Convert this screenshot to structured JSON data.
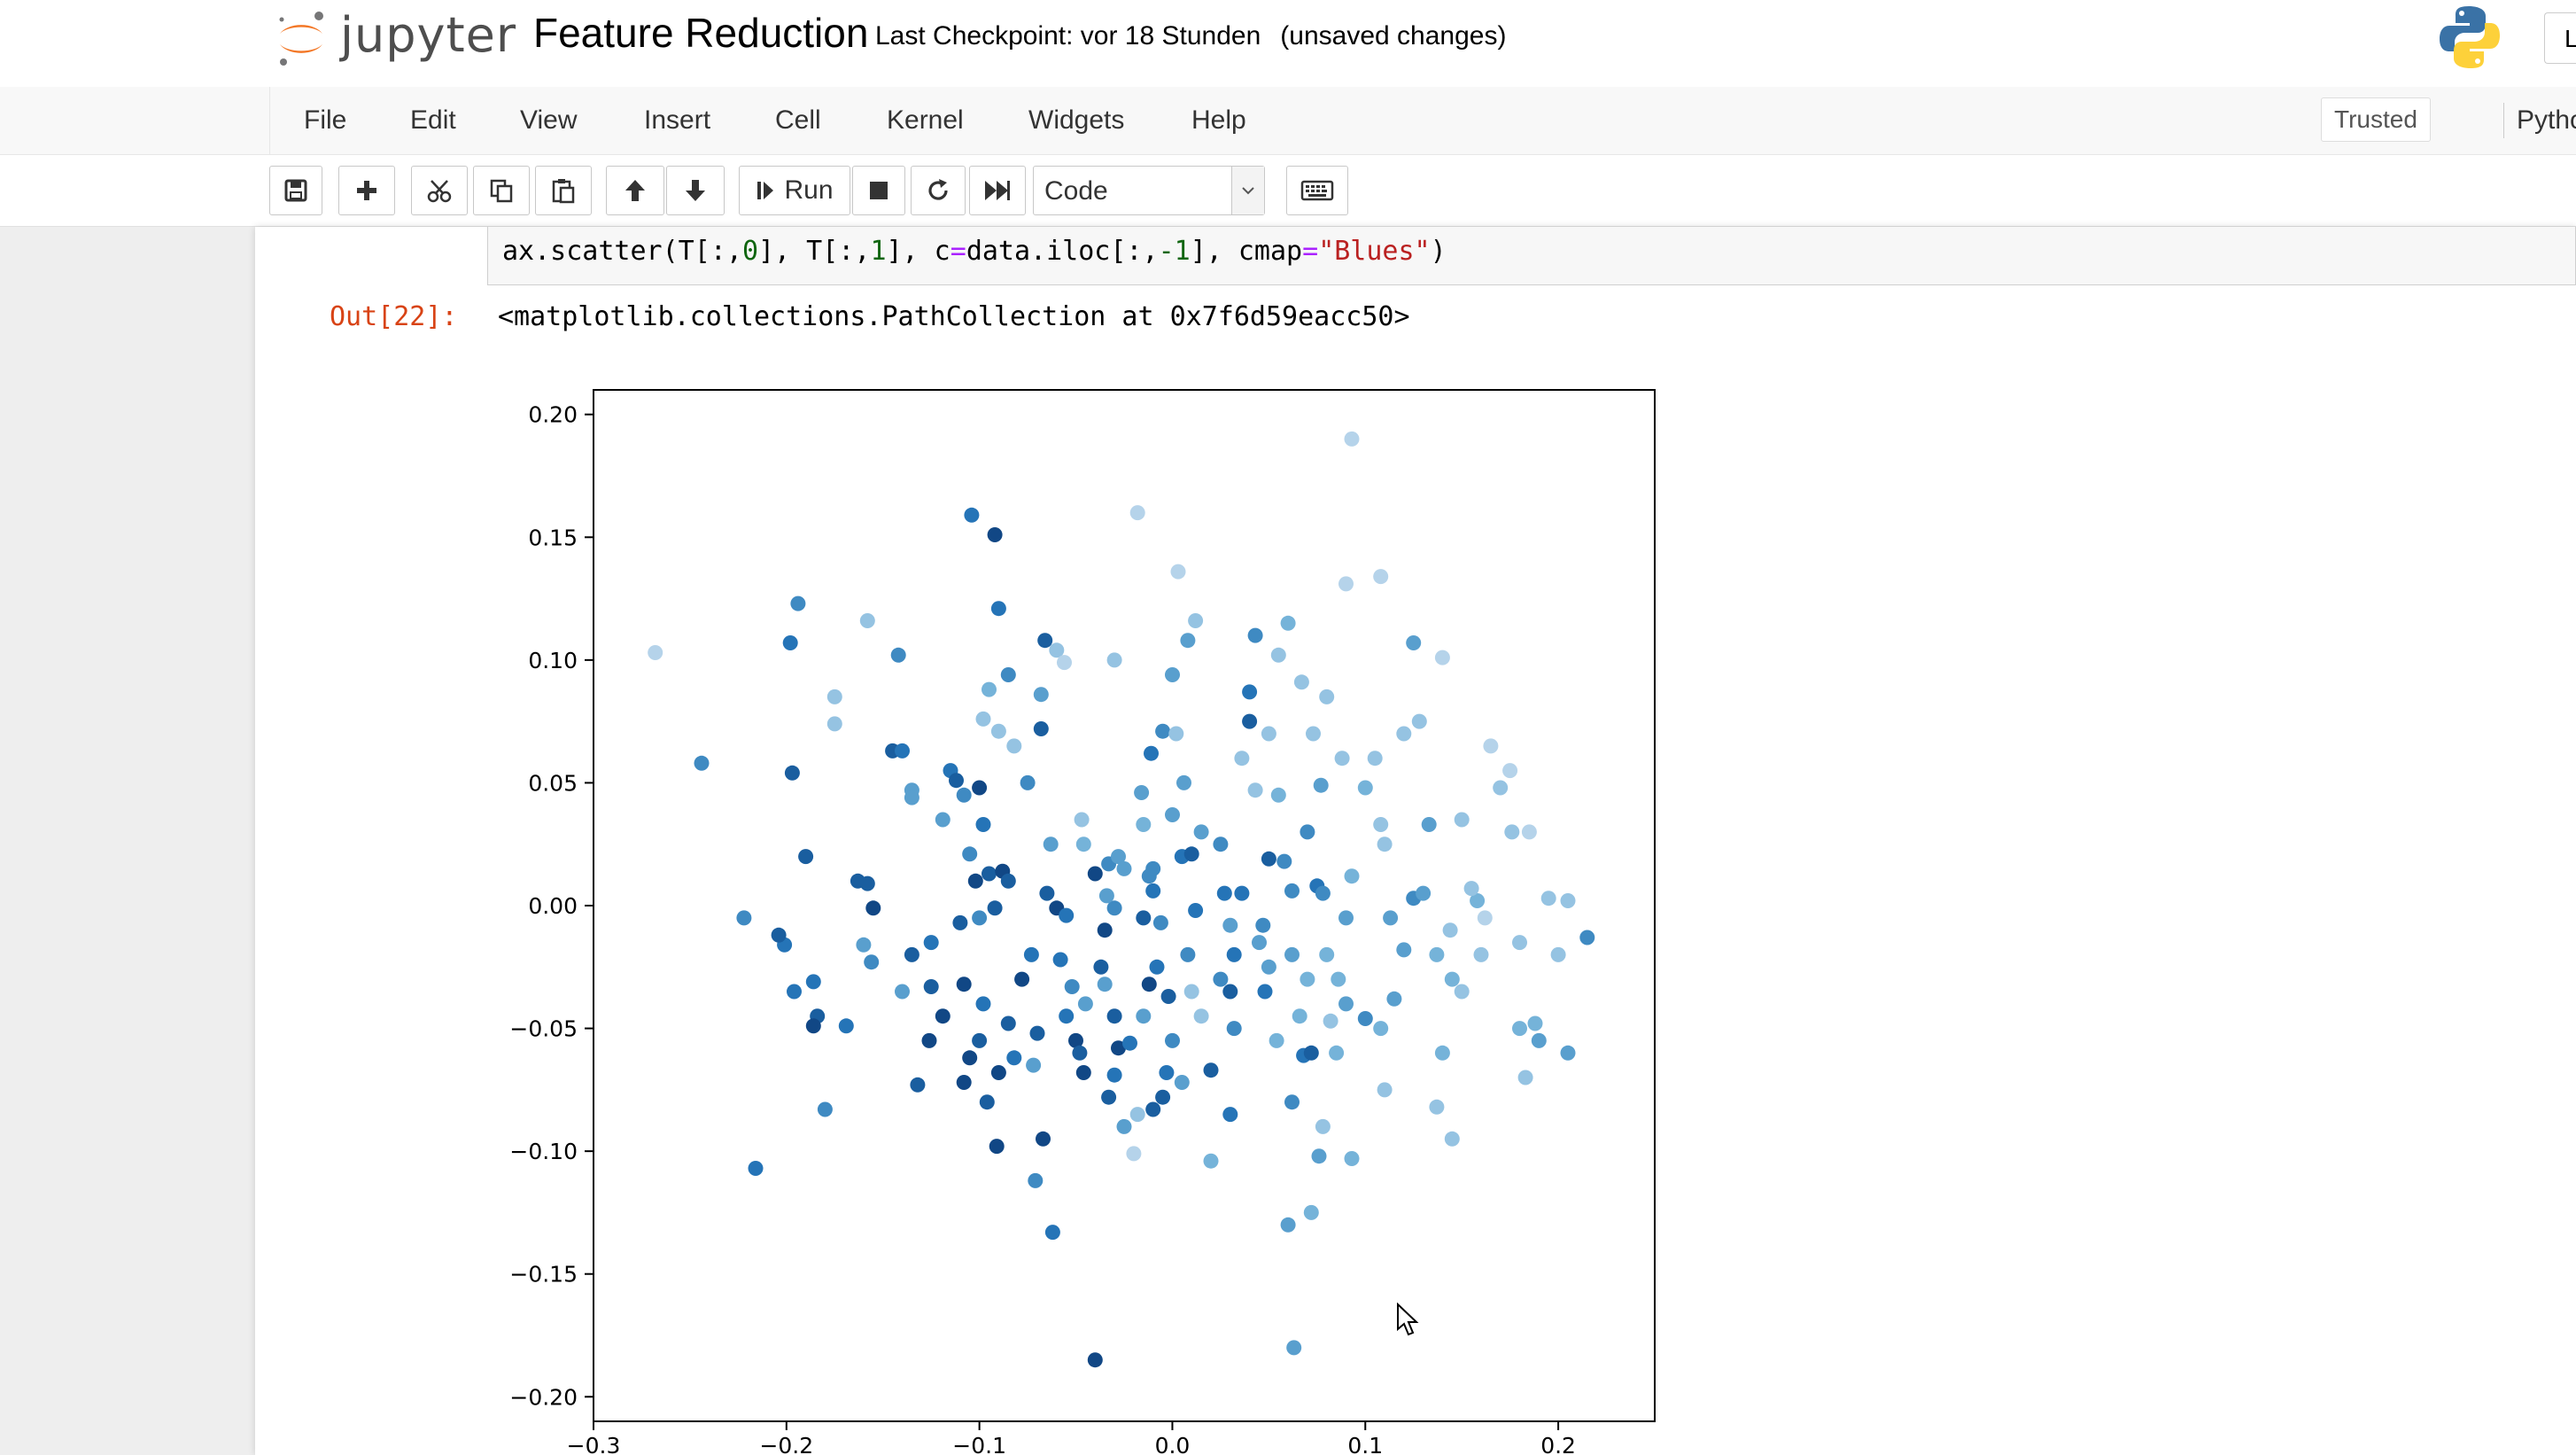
{
  "header": {
    "logo_text": "jupyter",
    "notebook_name": "Feature Reduction",
    "checkpoint": "Last Checkpoint: vor 18 Stunden",
    "save_status": "(unsaved changes)",
    "right_box_text": "L"
  },
  "menu": {
    "items": [
      "File",
      "Edit",
      "View",
      "Insert",
      "Cell",
      "Kernel",
      "Widgets",
      "Help"
    ],
    "trusted": "Trusted",
    "kernel": "Pytho"
  },
  "toolbar": {
    "run_label": "Run",
    "cell_type": "Code",
    "icons": [
      "save-icon",
      "plus-icon",
      "scissors-icon",
      "copy-icon",
      "paste-icon",
      "arrow-up-icon",
      "arrow-down-icon",
      "run-icon",
      "stop-icon",
      "restart-icon",
      "fast-forward-icon",
      "chevron-down-icon",
      "keyboard-icon"
    ]
  },
  "cell": {
    "code_parts": {
      "p1": "ax.scatter(T[:,",
      "n1": "0",
      "p2": "], T[:,",
      "n2": "1",
      "p3": "], c",
      "eq": "=",
      "p4": "data.iloc[:,",
      "m": "-1",
      "p5": "], cmap",
      "eq2": "=",
      "s": "\"Blues\"",
      "p6": ")"
    },
    "out_prompt": "Out[22]:",
    "output_text": "<matplotlib.collections.PathCollection at 0x7f6d59eacc50>"
  },
  "chart_data": {
    "type": "scatter",
    "colormap": "Blues",
    "xlim": [
      -0.3,
      0.25
    ],
    "ylim": [
      -0.21,
      0.21
    ],
    "xticks": [
      -0.3,
      -0.2,
      -0.1,
      0.0,
      0.1,
      0.2
    ],
    "xtick_labels": [
      "−0.3",
      "−0.2",
      "−0.1",
      "0.0",
      "0.1",
      "0.2"
    ],
    "yticks": [
      0.2,
      0.15,
      0.1,
      0.05,
      0.0,
      -0.05,
      -0.1,
      -0.15,
      -0.2
    ],
    "ytick_labels": [
      "0.20",
      "0.15",
      "0.10",
      "0.05",
      "0.00",
      "−0.05",
      "−0.10",
      "−0.15",
      "−0.20"
    ],
    "grid": false,
    "points": [
      [
        -0.268,
        0.103,
        0.2
      ],
      [
        -0.244,
        0.058,
        0.6
      ],
      [
        -0.222,
        -0.005,
        0.6
      ],
      [
        -0.216,
        -0.107,
        0.7
      ],
      [
        -0.194,
        0.123,
        0.6
      ],
      [
        -0.198,
        0.107,
        0.7
      ],
      [
        -0.197,
        0.054,
        0.8
      ],
      [
        -0.19,
        0.02,
        0.8
      ],
      [
        -0.186,
        -0.031,
        0.7
      ],
      [
        -0.184,
        -0.045,
        0.8
      ],
      [
        -0.186,
        -0.049,
        0.9
      ],
      [
        -0.18,
        -0.083,
        0.6
      ],
      [
        -0.175,
        0.085,
        0.3
      ],
      [
        -0.175,
        0.074,
        0.3
      ],
      [
        -0.196,
        -0.035,
        0.7
      ],
      [
        -0.201,
        -0.016,
        0.7
      ],
      [
        -0.204,
        -0.012,
        0.8
      ],
      [
        -0.169,
        -0.049,
        0.7
      ],
      [
        -0.163,
        0.01,
        0.8
      ],
      [
        -0.158,
        0.009,
        0.8
      ],
      [
        -0.155,
        -0.001,
        0.9
      ],
      [
        -0.16,
        -0.016,
        0.5
      ],
      [
        -0.156,
        -0.023,
        0.6
      ],
      [
        -0.145,
        0.063,
        0.8
      ],
      [
        -0.14,
        0.063,
        0.7
      ],
      [
        -0.142,
        0.102,
        0.6
      ],
      [
        -0.158,
        0.116,
        0.3
      ],
      [
        -0.135,
        0.047,
        0.5
      ],
      [
        -0.135,
        0.044,
        0.5
      ],
      [
        -0.14,
        -0.035,
        0.5
      ],
      [
        -0.132,
        -0.073,
        0.8
      ],
      [
        -0.135,
        -0.02,
        0.8
      ],
      [
        -0.125,
        -0.033,
        0.8
      ],
      [
        -0.119,
        -0.045,
        0.9
      ],
      [
        -0.126,
        -0.055,
        0.9
      ],
      [
        -0.125,
        -0.015,
        0.7
      ],
      [
        -0.119,
        0.035,
        0.5
      ],
      [
        -0.115,
        0.055,
        0.7
      ],
      [
        -0.112,
        0.051,
        0.8
      ],
      [
        -0.108,
        0.045,
        0.6
      ],
      [
        -0.104,
        0.159,
        0.7
      ],
      [
        -0.092,
        0.151,
        0.9
      ],
      [
        -0.09,
        0.121,
        0.7
      ],
      [
        -0.095,
        0.088,
        0.4
      ],
      [
        -0.085,
        0.094,
        0.6
      ],
      [
        -0.09,
        0.071,
        0.3
      ],
      [
        -0.098,
        0.076,
        0.3
      ],
      [
        -0.1,
        0.048,
        0.9
      ],
      [
        -0.098,
        0.033,
        0.7
      ],
      [
        -0.105,
        0.021,
        0.6
      ],
      [
        -0.102,
        0.01,
        0.9
      ],
      [
        -0.095,
        0.013,
        0.8
      ],
      [
        -0.088,
        0.014,
        0.9
      ],
      [
        -0.085,
        0.01,
        0.8
      ],
      [
        -0.092,
        -0.001,
        0.8
      ],
      [
        -0.1,
        -0.005,
        0.6
      ],
      [
        -0.11,
        -0.007,
        0.8
      ],
      [
        -0.108,
        -0.032,
        0.9
      ],
      [
        -0.098,
        -0.04,
        0.7
      ],
      [
        -0.1,
        -0.055,
        0.8
      ],
      [
        -0.105,
        -0.062,
        0.9
      ],
      [
        -0.108,
        -0.072,
        0.9
      ],
      [
        -0.096,
        -0.08,
        0.8
      ],
      [
        -0.091,
        -0.098,
        0.9
      ],
      [
        -0.09,
        -0.068,
        0.9
      ],
      [
        -0.082,
        -0.062,
        0.7
      ],
      [
        -0.085,
        -0.048,
        0.8
      ],
      [
        -0.078,
        -0.03,
        0.9
      ],
      [
        -0.073,
        -0.02,
        0.7
      ],
      [
        -0.07,
        -0.052,
        0.8
      ],
      [
        -0.072,
        -0.065,
        0.5
      ],
      [
        -0.067,
        -0.095,
        0.9
      ],
      [
        -0.071,
        -0.112,
        0.6
      ],
      [
        -0.075,
        0.05,
        0.6
      ],
      [
        -0.082,
        0.065,
        0.3
      ],
      [
        -0.068,
        0.072,
        0.8
      ],
      [
        -0.068,
        0.086,
        0.5
      ],
      [
        -0.066,
        0.108,
        0.8
      ],
      [
        -0.06,
        0.104,
        0.3
      ],
      [
        -0.056,
        0.099,
        0.2
      ],
      [
        -0.063,
        0.025,
        0.5
      ],
      [
        -0.065,
        0.005,
        0.8
      ],
      [
        -0.06,
        -0.001,
        0.9
      ],
      [
        -0.055,
        -0.004,
        0.7
      ],
      [
        -0.058,
        -0.022,
        0.7
      ],
      [
        -0.052,
        -0.033,
        0.6
      ],
      [
        -0.055,
        -0.045,
        0.7
      ],
      [
        -0.05,
        -0.055,
        0.9
      ],
      [
        -0.045,
        -0.04,
        0.5
      ],
      [
        -0.048,
        -0.06,
        0.8
      ],
      [
        -0.046,
        -0.068,
        0.9
      ],
      [
        -0.062,
        -0.133,
        0.7
      ],
      [
        -0.047,
        0.035,
        0.3
      ],
      [
        -0.046,
        0.025,
        0.4
      ],
      [
        -0.04,
        0.013,
        0.9
      ],
      [
        -0.035,
        -0.01,
        0.9
      ],
      [
        -0.03,
        -0.001,
        0.6
      ],
      [
        -0.034,
        0.004,
        0.5
      ],
      [
        -0.033,
        0.017,
        0.6
      ],
      [
        -0.028,
        0.02,
        0.5
      ],
      [
        -0.025,
        0.015,
        0.5
      ],
      [
        -0.037,
        -0.025,
        0.8
      ],
      [
        -0.035,
        -0.032,
        0.5
      ],
      [
        -0.03,
        -0.045,
        0.8
      ],
      [
        -0.028,
        -0.058,
        0.9
      ],
      [
        -0.022,
        -0.056,
        0.7
      ],
      [
        -0.03,
        -0.069,
        0.7
      ],
      [
        -0.033,
        -0.078,
        0.8
      ],
      [
        -0.025,
        -0.09,
        0.5
      ],
      [
        -0.018,
        -0.085,
        0.3
      ],
      [
        -0.02,
        -0.101,
        0.2
      ],
      [
        -0.04,
        -0.185,
        0.9
      ],
      [
        -0.018,
        0.16,
        0.2
      ],
      [
        -0.03,
        0.1,
        0.3
      ],
      [
        -0.016,
        0.046,
        0.5
      ],
      [
        -0.015,
        0.033,
        0.4
      ],
      [
        -0.012,
        0.012,
        0.6
      ],
      [
        -0.01,
        0.006,
        0.7
      ],
      [
        -0.015,
        -0.005,
        0.8
      ],
      [
        -0.006,
        -0.007,
        0.6
      ],
      [
        -0.008,
        -0.025,
        0.7
      ],
      [
        -0.012,
        -0.032,
        0.9
      ],
      [
        -0.002,
        -0.037,
        0.8
      ],
      [
        0.0,
        -0.055,
        0.6
      ],
      [
        -0.003,
        -0.068,
        0.7
      ],
      [
        -0.005,
        -0.078,
        0.8
      ],
      [
        -0.01,
        -0.083,
        0.8
      ],
      [
        0.005,
        -0.072,
        0.5
      ],
      [
        -0.011,
        0.062,
        0.7
      ],
      [
        -0.005,
        0.071,
        0.6
      ],
      [
        0.002,
        0.07,
        0.3
      ],
      [
        0.006,
        0.05,
        0.5
      ],
      [
        0.0,
        0.037,
        0.5
      ],
      [
        0.005,
        0.02,
        0.7
      ],
      [
        0.01,
        0.021,
        0.8
      ],
      [
        0.012,
        -0.002,
        0.7
      ],
      [
        0.008,
        -0.02,
        0.6
      ],
      [
        0.01,
        -0.035,
        0.3
      ],
      [
        0.015,
        -0.045,
        0.3
      ],
      [
        0.02,
        -0.067,
        0.8
      ],
      [
        0.02,
        -0.104,
        0.4
      ],
      [
        0.0,
        0.094,
        0.5
      ],
      [
        0.008,
        0.108,
        0.5
      ],
      [
        0.012,
        0.116,
        0.3
      ],
      [
        0.003,
        0.136,
        0.2
      ],
      [
        0.025,
        0.025,
        0.6
      ],
      [
        0.027,
        0.005,
        0.7
      ],
      [
        0.03,
        -0.008,
        0.5
      ],
      [
        0.032,
        -0.02,
        0.7
      ],
      [
        0.03,
        -0.035,
        0.8
      ],
      [
        0.032,
        -0.05,
        0.6
      ],
      [
        0.03,
        -0.085,
        0.7
      ],
      [
        0.036,
        0.005,
        0.7
      ],
      [
        0.036,
        0.06,
        0.3
      ],
      [
        0.043,
        0.047,
        0.3
      ],
      [
        0.05,
        0.019,
        0.8
      ],
      [
        0.047,
        -0.008,
        0.6
      ],
      [
        0.05,
        -0.025,
        0.5
      ],
      [
        0.048,
        -0.035,
        0.7
      ],
      [
        0.054,
        -0.055,
        0.4
      ],
      [
        0.04,
        0.075,
        0.8
      ],
      [
        0.04,
        0.087,
        0.7
      ],
      [
        0.043,
        0.11,
        0.6
      ],
      [
        0.05,
        0.07,
        0.3
      ],
      [
        0.055,
        0.045,
        0.4
      ],
      [
        0.058,
        0.018,
        0.6
      ],
      [
        0.062,
        0.006,
        0.6
      ],
      [
        0.062,
        -0.02,
        0.5
      ],
      [
        0.066,
        -0.045,
        0.4
      ],
      [
        0.068,
        -0.061,
        0.7
      ],
      [
        0.062,
        -0.08,
        0.6
      ],
      [
        0.06,
        -0.13,
        0.5
      ],
      [
        0.063,
        -0.18,
        0.5
      ],
      [
        0.067,
        0.091,
        0.3
      ],
      [
        0.073,
        0.07,
        0.3
      ],
      [
        0.077,
        0.049,
        0.5
      ],
      [
        0.07,
        0.03,
        0.6
      ],
      [
        0.075,
        0.008,
        0.7
      ],
      [
        0.078,
        0.005,
        0.6
      ],
      [
        0.08,
        -0.02,
        0.4
      ],
      [
        0.086,
        -0.03,
        0.4
      ],
      [
        0.082,
        -0.047,
        0.3
      ],
      [
        0.072,
        -0.06,
        0.8
      ],
      [
        0.078,
        -0.09,
        0.3
      ],
      [
        0.076,
        -0.102,
        0.5
      ],
      [
        0.072,
        -0.125,
        0.4
      ],
      [
        0.08,
        0.085,
        0.3
      ],
      [
        0.088,
        0.06,
        0.3
      ],
      [
        0.093,
        0.012,
        0.4
      ],
      [
        0.09,
        -0.005,
        0.5
      ],
      [
        0.09,
        -0.04,
        0.5
      ],
      [
        0.093,
        -0.103,
        0.4
      ],
      [
        0.09,
        0.131,
        0.2
      ],
      [
        0.093,
        0.19,
        0.2
      ],
      [
        0.108,
        0.134,
        0.2
      ],
      [
        0.125,
        0.107,
        0.5
      ],
      [
        0.1,
        0.048,
        0.4
      ],
      [
        0.108,
        0.033,
        0.3
      ],
      [
        0.11,
        0.025,
        0.3
      ],
      [
        0.113,
        -0.005,
        0.5
      ],
      [
        0.12,
        -0.018,
        0.5
      ],
      [
        0.115,
        -0.038,
        0.5
      ],
      [
        0.108,
        -0.05,
        0.4
      ],
      [
        0.1,
        -0.046,
        0.6
      ],
      [
        0.125,
        0.003,
        0.6
      ],
      [
        0.13,
        0.005,
        0.5
      ],
      [
        0.133,
        0.033,
        0.5
      ],
      [
        0.137,
        -0.02,
        0.4
      ],
      [
        0.144,
        -0.01,
        0.3
      ],
      [
        0.145,
        -0.03,
        0.4
      ],
      [
        0.14,
        -0.06,
        0.4
      ],
      [
        0.137,
        -0.082,
        0.3
      ],
      [
        0.145,
        -0.095,
        0.3
      ],
      [
        0.15,
        -0.035,
        0.3
      ],
      [
        0.16,
        -0.02,
        0.3
      ],
      [
        0.162,
        -0.005,
        0.2
      ],
      [
        0.158,
        0.002,
        0.4
      ],
      [
        0.17,
        0.048,
        0.3
      ],
      [
        0.176,
        0.03,
        0.3
      ],
      [
        0.18,
        -0.015,
        0.3
      ],
      [
        0.18,
        -0.05,
        0.4
      ],
      [
        0.183,
        -0.07,
        0.3
      ],
      [
        0.188,
        -0.048,
        0.4
      ],
      [
        0.19,
        -0.055,
        0.5
      ],
      [
        0.195,
        0.003,
        0.3
      ],
      [
        0.2,
        -0.02,
        0.3
      ],
      [
        0.205,
        -0.06,
        0.5
      ],
      [
        0.215,
        -0.013,
        0.6
      ],
      [
        0.12,
        0.07,
        0.3
      ],
      [
        0.128,
        0.075,
        0.3
      ],
      [
        0.15,
        0.035,
        0.3
      ],
      [
        0.155,
        0.007,
        0.3
      ],
      [
        0.175,
        0.055,
        0.2
      ],
      [
        0.185,
        0.03,
        0.2
      ],
      [
        0.165,
        0.065,
        0.2
      ],
      [
        0.205,
        0.002,
        0.3
      ],
      [
        0.14,
        0.101,
        0.2
      ],
      [
        0.06,
        0.115,
        0.4
      ],
      [
        0.055,
        0.102,
        0.3
      ],
      [
        0.07,
        -0.03,
        0.4
      ],
      [
        -0.01,
        0.015,
        0.6
      ],
      [
        0.015,
        0.03,
        0.5
      ],
      [
        0.045,
        -0.015,
        0.5
      ],
      [
        0.085,
        -0.06,
        0.4
      ],
      [
        -0.015,
        -0.045,
        0.5
      ],
      [
        0.025,
        -0.03,
        0.6
      ],
      [
        0.105,
        0.06,
        0.3
      ],
      [
        0.11,
        -0.075,
        0.3
      ]
    ]
  }
}
